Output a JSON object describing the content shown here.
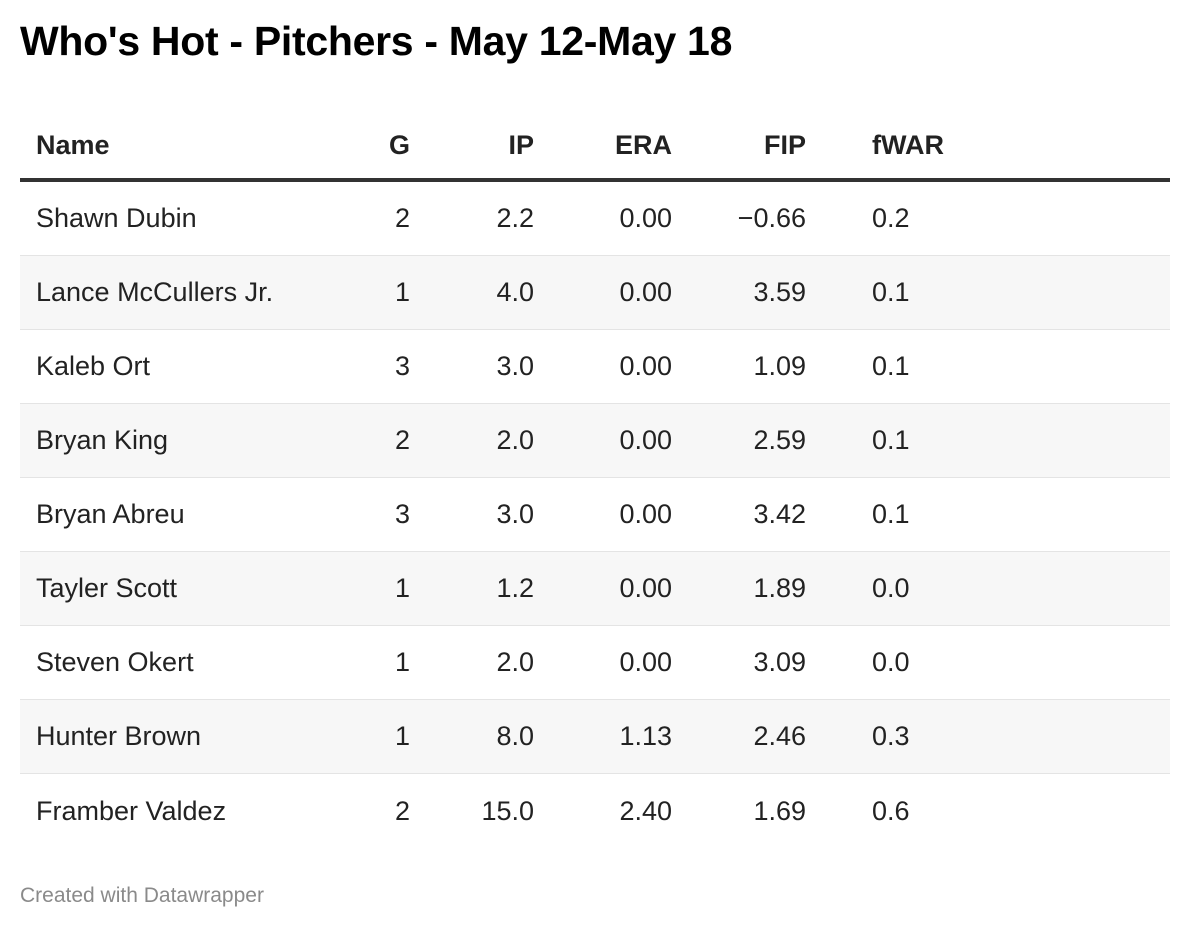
{
  "title": "Who's Hot - Pitchers - May 12-May 18",
  "footer": "Created with Datawrapper",
  "chart_data": {
    "type": "table",
    "title": "Who's Hot - Pitchers - May 12-May 18",
    "columns": [
      "Name",
      "G",
      "IP",
      "ERA",
      "FIP",
      "fWAR"
    ],
    "rows": [
      [
        "Shawn Dubin",
        "2",
        "2.2",
        "0.00",
        "−0.66",
        "0.2"
      ],
      [
        "Lance McCullers Jr.",
        "1",
        "4.0",
        "0.00",
        "3.59",
        "0.1"
      ],
      [
        "Kaleb Ort",
        "3",
        "3.0",
        "0.00",
        "1.09",
        "0.1"
      ],
      [
        "Bryan King",
        "2",
        "2.0",
        "0.00",
        "2.59",
        "0.1"
      ],
      [
        "Bryan Abreu",
        "3",
        "3.0",
        "0.00",
        "3.42",
        "0.1"
      ],
      [
        "Tayler Scott",
        "1",
        "1.2",
        "0.00",
        "1.89",
        "0.0"
      ],
      [
        "Steven Okert",
        "1",
        "2.0",
        "0.00",
        "3.09",
        "0.0"
      ],
      [
        "Hunter Brown",
        "1",
        "8.0",
        "1.13",
        "2.46",
        "0.3"
      ],
      [
        "Framber Valdez",
        "2",
        "15.0",
        "2.40",
        "1.69",
        "0.6"
      ]
    ]
  },
  "colors": {
    "text": "#222222",
    "title": "#000000",
    "stripe": "#f7f7f7",
    "header_rule": "#333333",
    "row_rule": "#e4e4e4",
    "footer": "#8a8a8a"
  }
}
